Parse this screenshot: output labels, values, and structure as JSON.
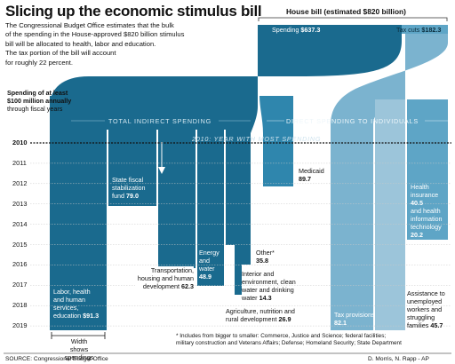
{
  "title": "Slicing up the economic stimulus bill",
  "intro": [
    "The Congressional Budget Office estimates that the bulk",
    "of the spending in the House-approved $820 billion stimulus",
    "bill will be allocated to health, labor and education.",
    "The tax portion of the bill will account",
    "for roughly 22 percent."
  ],
  "house_bill": {
    "label": "House bill (estimated $820 billion)",
    "spending_label": "Spending",
    "spending_value": "$637.3",
    "taxcuts_label": "Tax cuts",
    "taxcuts_value": "$182.3"
  },
  "spending_note": [
    "Spending of at least",
    "$100 million annually",
    "through fiscal years"
  ],
  "sections": {
    "indirect": "TOTAL INDIRECT SPENDING",
    "direct": "DIRECT SPENDING TO INDIVIDUALS",
    "year_most": "2010: YEAR WITH MOST SPENDING"
  },
  "years": [
    "2010",
    "2011",
    "2012",
    "2013",
    "2014",
    "2015",
    "2016",
    "2017",
    "2018",
    "2019"
  ],
  "categories": {
    "labor": {
      "lines": [
        "Labor, health",
        "and human",
        "services,"
      ],
      "value_prefix": "education ",
      "value": "$91.3"
    },
    "state": {
      "lines": [
        "State fiscal",
        "stabilization"
      ],
      "value_prefix": "fund ",
      "value": "79.0"
    },
    "transport": {
      "lines": [
        "Transportation,",
        "housing and human"
      ],
      "value_prefix": "development ",
      "value": "62.3"
    },
    "energy": {
      "lines": [
        "Energy",
        "and",
        "water"
      ],
      "value": "48.9"
    },
    "interior": {
      "lines": [
        "Interior and",
        "environment, clean",
        "water and drinking"
      ],
      "value_prefix": "water ",
      "value": "14.3"
    },
    "agri": {
      "lines": [
        "Agriculture, nutrition and"
      ],
      "value_prefix": "rural development ",
      "value": "26.9"
    },
    "other": {
      "lines": [
        "Other*"
      ],
      "value": "35.8"
    },
    "medicaid": {
      "lines": [
        "Medicaid"
      ],
      "value": "89.7"
    },
    "tax": {
      "lines": [
        "Tax provisions"
      ],
      "value": "82.1"
    },
    "health_it": {
      "lines": [
        "Health",
        "insurance"
      ],
      "value1": "40.5",
      "lines2": [
        "and health",
        "information",
        "technology"
      ],
      "value2": "20.2"
    },
    "unemployed": {
      "lines": [
        "Assistance to",
        "unemployed",
        "workers and",
        "struggling"
      ],
      "value_prefix": "families ",
      "value": "45.7"
    }
  },
  "width_note": [
    "Width",
    "shows spendings"
  ],
  "footnote": [
    "* Includes from bigger to smaller: Commerce, Justice and Science; federal facilities;",
    "military construction and Veterans Affairs; Defense; Homeland Security; State Department"
  ],
  "source": "SOURCE: Congressional Budget Office",
  "credit": "D. Morris, N. Rapp - AP",
  "colors": {
    "dark": "#1a6a8e",
    "light": "#5ea5c6",
    "mid": "#2f86ad"
  }
}
